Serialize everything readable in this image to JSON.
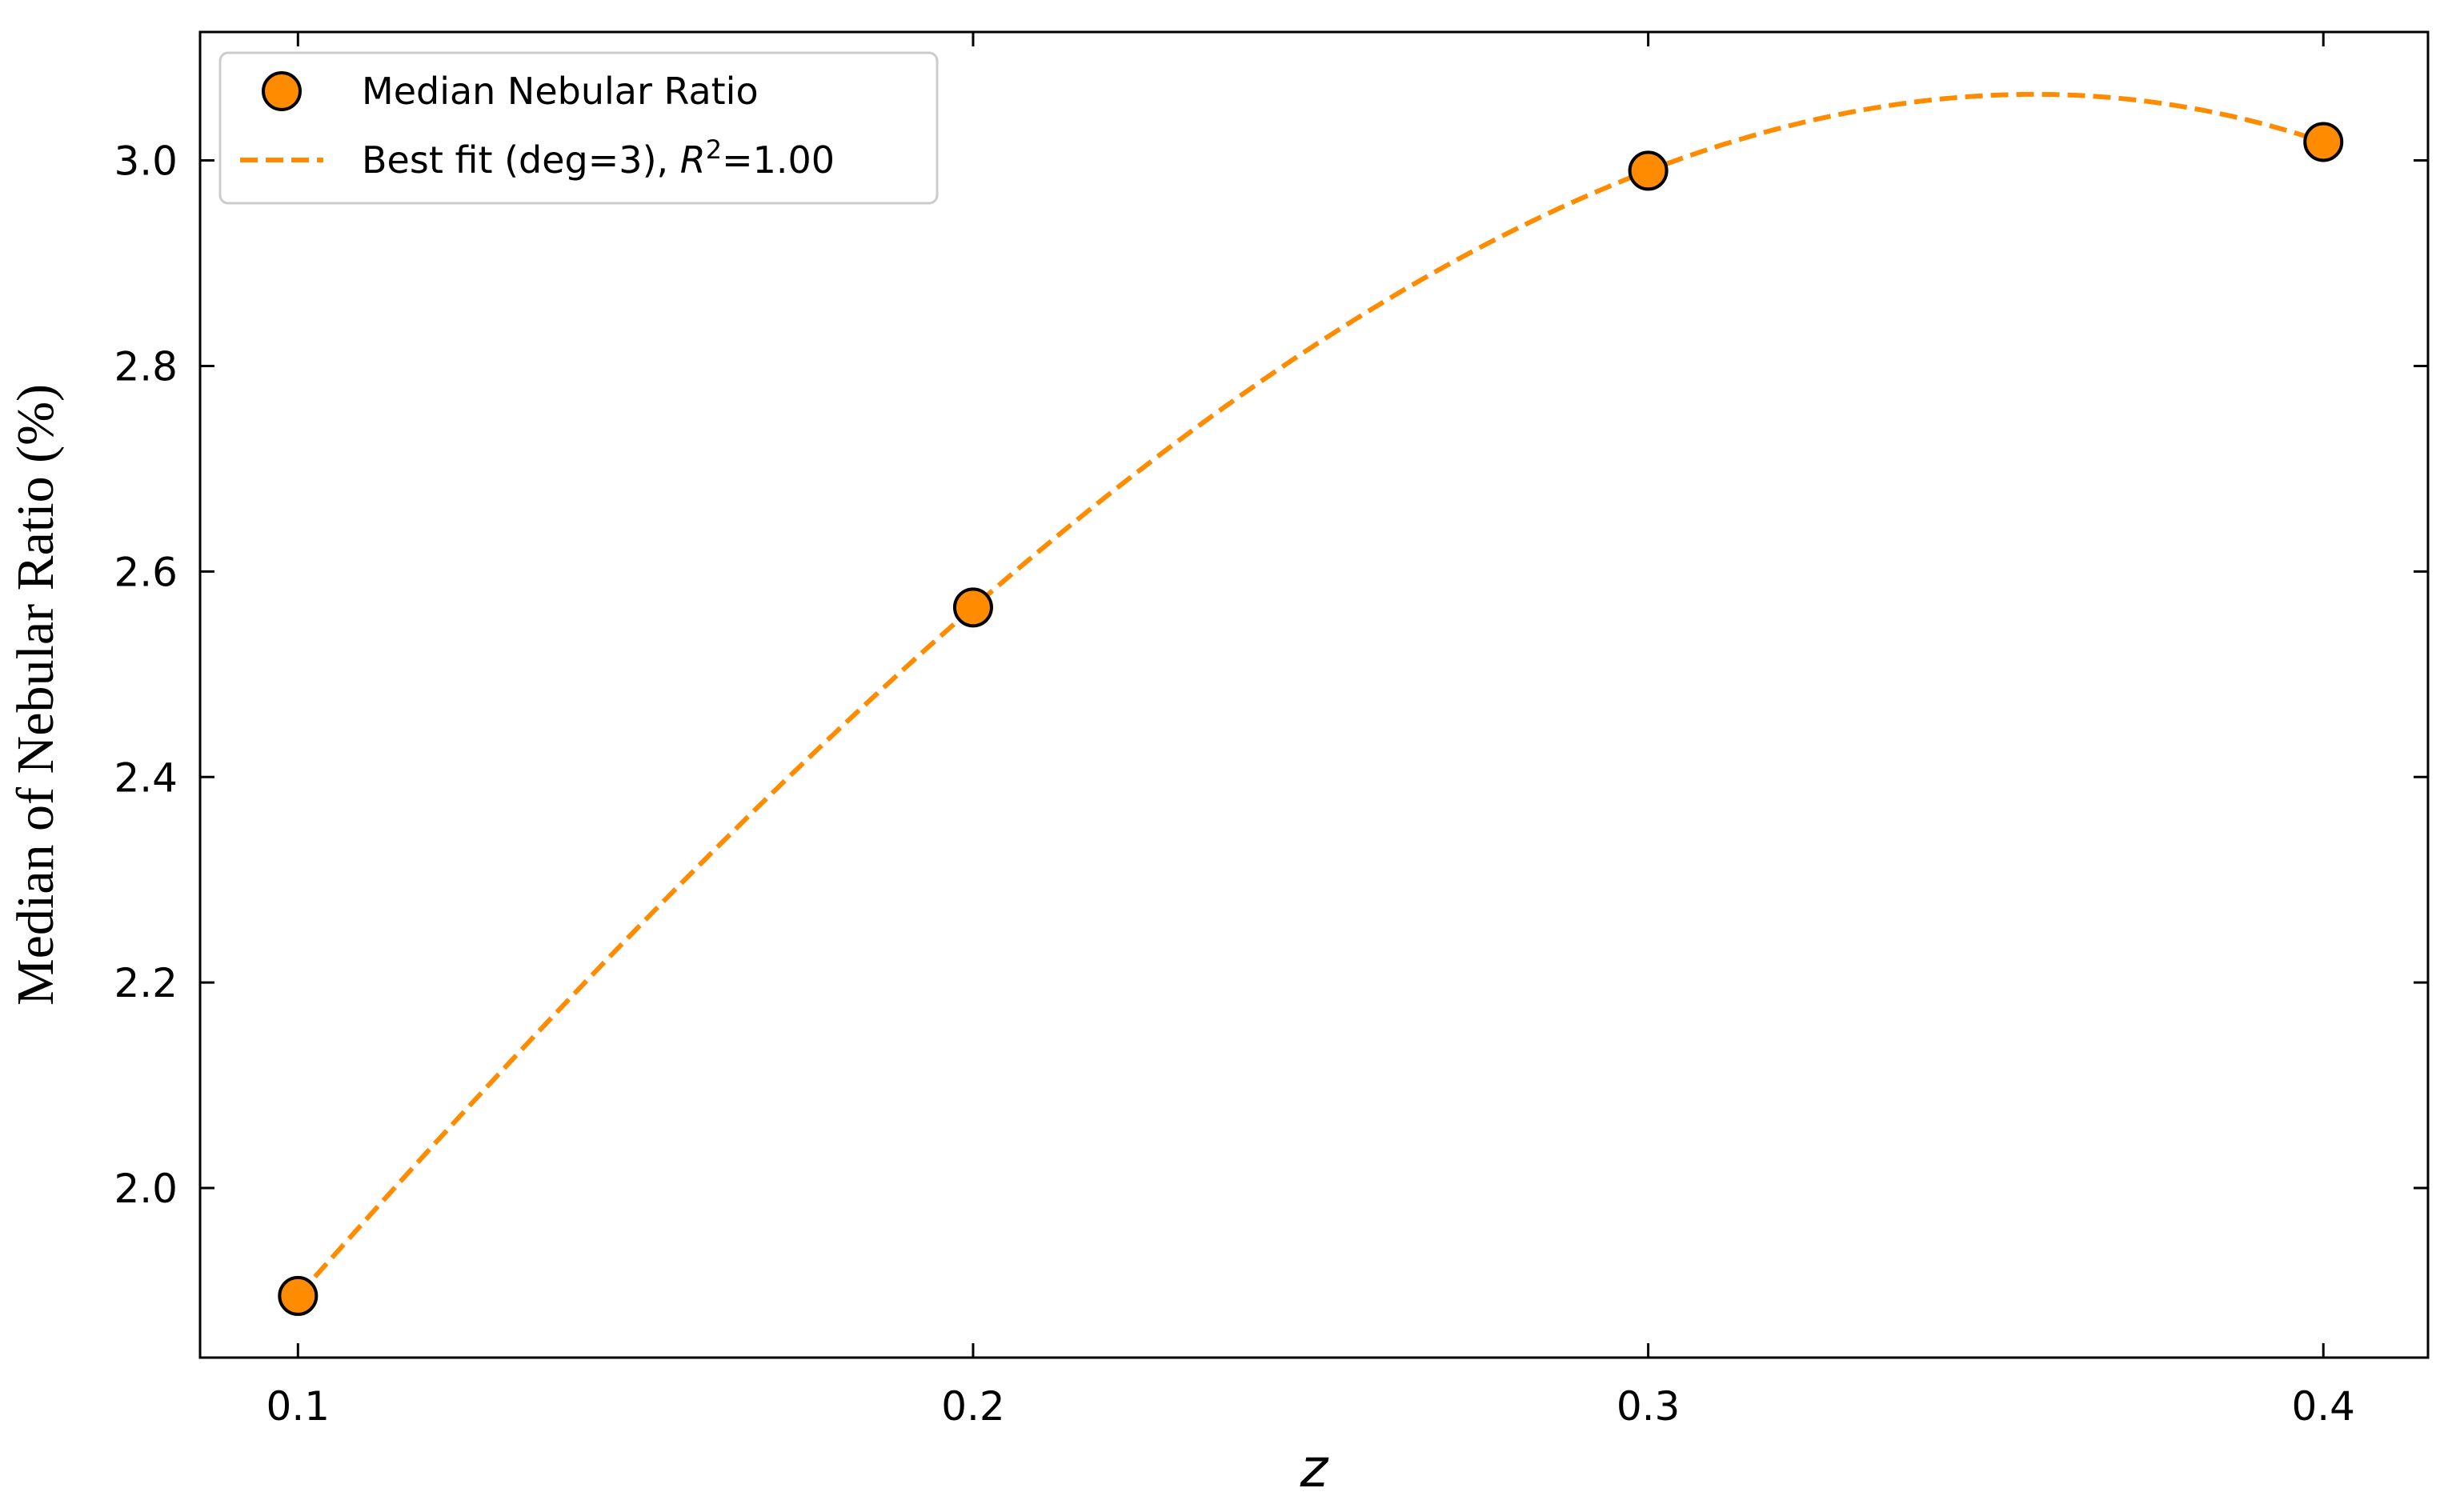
{
  "chart_data": {
    "type": "scatter",
    "title": "",
    "xlabel": "z",
    "ylabel": "Median of Nebular Ratio (%)",
    "xlim": [
      0.0855,
      0.4155
    ],
    "ylim": [
      1.835,
      3.125
    ],
    "x_ticks": [
      0.1,
      0.2,
      0.3,
      0.4
    ],
    "x_tick_labels": [
      "0.1",
      "0.2",
      "0.3",
      "0.4"
    ],
    "y_ticks": [
      2.0,
      2.2,
      2.4,
      2.6,
      2.8,
      3.0
    ],
    "y_tick_labels": [
      "2.0",
      "2.2",
      "2.4",
      "2.6",
      "2.8",
      "3.0"
    ],
    "grid": false,
    "legend_position": "top-left",
    "colors": {
      "accent": "#ff8c00",
      "marker_edge": "#000000"
    },
    "series": [
      {
        "name": "Median Nebular Ratio",
        "kind": "scatter",
        "x": [
          0.1,
          0.2,
          0.3,
          0.4
        ],
        "y": [
          1.895,
          2.565,
          2.99,
          3.018
        ]
      },
      {
        "name": "Best fit (deg=3), R²=1.00",
        "kind": "line",
        "style": "dashed",
        "degree": 3,
        "r_squared": "1.00",
        "x": [
          0.1,
          0.15,
          0.2,
          0.25,
          0.3,
          0.35,
          0.36,
          0.4
        ],
        "y": [
          1.895,
          2.258,
          2.565,
          2.8,
          2.99,
          3.063,
          3.065,
          3.018
        ]
      }
    ],
    "legend": {
      "scatter_label": "Median Nebular Ratio",
      "fit_label_prefix": "Best fit (deg=3), ",
      "fit_label_R": "R",
      "fit_label_sup": "2",
      "fit_label_suffix": "=1.00"
    }
  }
}
